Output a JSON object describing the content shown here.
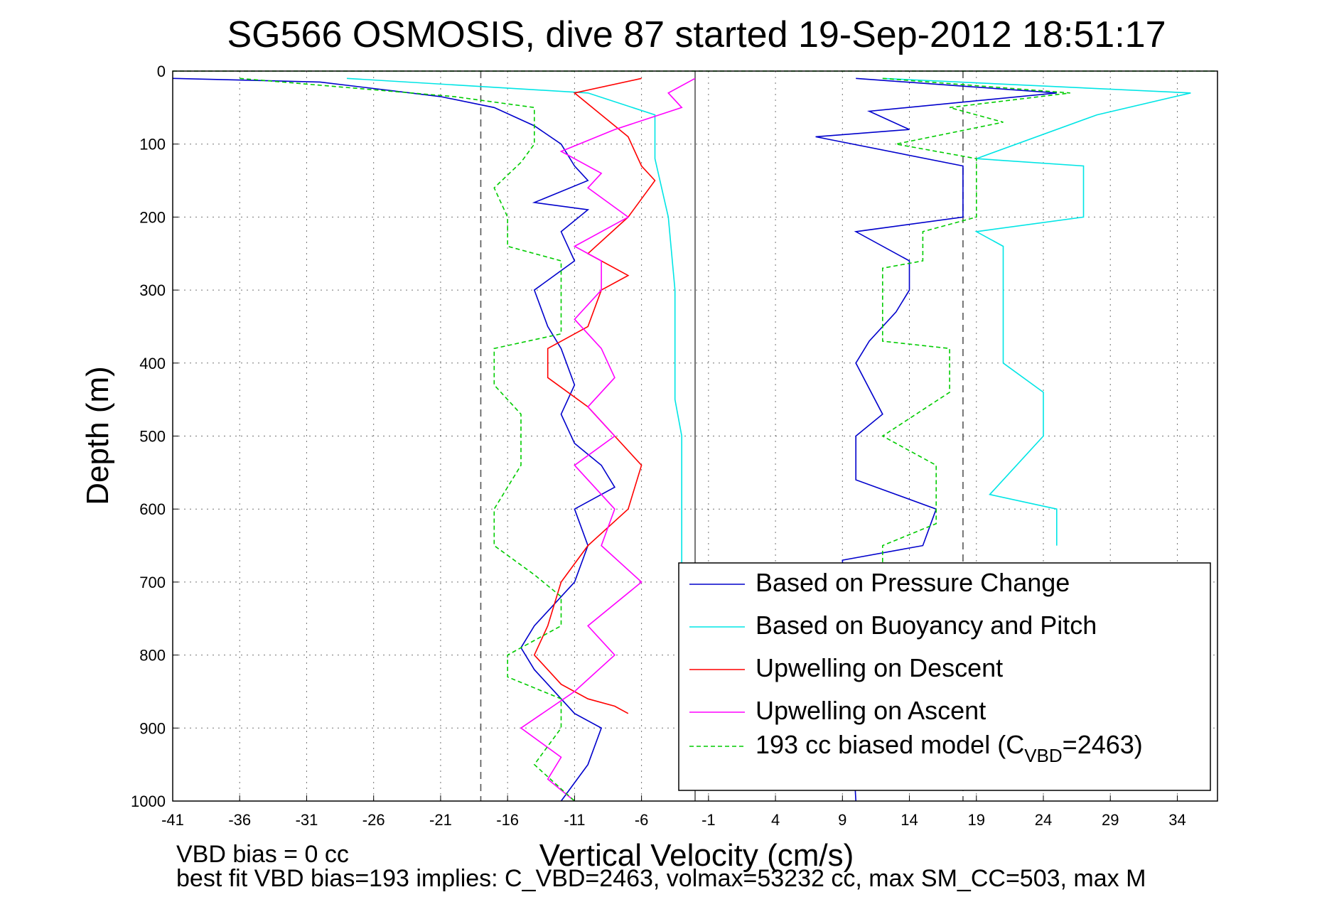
{
  "chart_data": {
    "type": "line",
    "title": "SG566 OSMOSIS, dive 87 started 19-Sep-2012 18:51:17",
    "xlabel": "Vertical Velocity (cm/s)",
    "ylabel": "Depth (m)",
    "xlim": [
      -41,
      37
    ],
    "ylim": [
      0,
      1000
    ],
    "y_reversed": true,
    "grid": true,
    "legend_position": "bottom-right",
    "x_ticks": [
      "-41",
      "-36",
      "-31",
      "-26",
      "-21",
      "-16",
      "-11",
      "-6",
      "-1",
      "4",
      "9",
      "14",
      "19",
      "24",
      "29",
      "34"
    ],
    "y_ticks": [
      "0",
      "100",
      "200",
      "300",
      "400",
      "500",
      "600",
      "700",
      "800",
      "900",
      "1000"
    ],
    "reference_lines": {
      "solid": [
        -2
      ],
      "dashed": [
        -18,
        18
      ]
    },
    "legend": {
      "items": [
        {
          "label": "Based on Pressure Change",
          "color": "#0000cc",
          "dash": "solid"
        },
        {
          "label": "Based on Buoyancy and Pitch",
          "color": "#00e5e5",
          "dash": "solid"
        },
        {
          "label": "Upwelling on Descent",
          "color": "#ff0000",
          "dash": "solid"
        },
        {
          "label": "Upwelling on Ascent",
          "color": "#ff00ff",
          "dash": "solid"
        },
        {
          "label": "193 cc biased model (C",
          "sub": "VBD",
          "suffix": "=2463)",
          "color": "#00cc00",
          "dash": "dashed"
        }
      ]
    },
    "series": [
      {
        "name": "Based on Pressure Change",
        "color": "#0000cc",
        "x": [
          -41,
          -30,
          -21,
          -17,
          -14,
          -12,
          -11,
          -10,
          -14,
          -10,
          -12,
          -11,
          -14,
          -13,
          -12,
          -11,
          -12,
          -11,
          -9,
          -8,
          -11,
          -10,
          -11,
          -14,
          -15,
          -14,
          -13,
          -12,
          -11,
          -9,
          -10,
          -12
        ],
        "y": [
          10,
          15,
          35,
          50,
          75,
          100,
          130,
          150,
          180,
          190,
          220,
          260,
          300,
          350,
          380,
          430,
          470,
          510,
          540,
          570,
          600,
          650,
          700,
          760,
          790,
          820,
          840,
          860,
          880,
          900,
          950,
          1000
        ]
      },
      {
        "name": "Based on Buoyancy and Pitch",
        "color": "#00e5e5",
        "x": [
          -28,
          -10,
          -5,
          -5,
          -4,
          -3.5,
          -3.5,
          -3.5,
          -3,
          -3,
          -3,
          -3,
          -3,
          -3
        ],
        "y": [
          10,
          30,
          60,
          120,
          200,
          300,
          400,
          450,
          500,
          600,
          650,
          670,
          700,
          760
        ]
      },
      {
        "name": "Upwelling on Descent",
        "color": "#ff0000",
        "x": [
          -6,
          -11,
          -9,
          -7,
          -6,
          -5,
          -7,
          -10,
          -7,
          -9,
          -10,
          -13,
          -13,
          -10,
          -8,
          -6,
          -7,
          -10,
          -12,
          -13,
          -14,
          -12,
          -10,
          -8,
          -7
        ],
        "y": [
          10,
          30,
          60,
          90,
          130,
          150,
          200,
          250,
          280,
          300,
          350,
          380,
          420,
          460,
          500,
          540,
          600,
          650,
          700,
          760,
          800,
          840,
          860,
          870,
          880
        ]
      },
      {
        "name": "Upwelling on Ascent",
        "color": "#ff00ff",
        "x": [
          -2,
          -4,
          -3,
          -8,
          -12,
          -9,
          -10,
          -7,
          -11,
          -9,
          -9,
          -11,
          -9,
          -8,
          -10,
          -8,
          -11,
          -8,
          -9,
          -6,
          -10,
          -8,
          -11,
          -15,
          -12,
          -13,
          -11
        ],
        "y": [
          10,
          30,
          50,
          80,
          110,
          140,
          160,
          200,
          240,
          260,
          300,
          340,
          380,
          420,
          460,
          500,
          540,
          600,
          650,
          700,
          760,
          800,
          850,
          900,
          940,
          970,
          1000
        ]
      },
      {
        "name": "193 cc biased model (CVBD=2463)",
        "color": "#00cc00",
        "x": [
          -36,
          -20,
          -14,
          -14,
          -15,
          -17,
          -16,
          -16,
          -12,
          -12,
          -12,
          -17,
          -17,
          -15,
          -15,
          -15,
          -17,
          -17,
          -14,
          -12,
          -12,
          -16,
          -16,
          -12,
          -12,
          -14,
          -11
        ],
        "y": [
          10,
          35,
          50,
          100,
          125,
          160,
          200,
          240,
          260,
          300,
          360,
          380,
          430,
          470,
          500,
          540,
          600,
          650,
          690,
          720,
          760,
          800,
          830,
          860,
          900,
          950,
          1000
        ]
      }
    ],
    "series_right": [
      {
        "name": "Based on Pressure Change",
        "color": "#0000cc",
        "x": [
          10,
          25,
          11,
          14,
          7,
          18,
          18,
          10,
          14,
          14,
          13,
          11,
          10,
          12,
          10,
          10,
          16,
          15,
          9,
          10
        ],
        "y": [
          10,
          30,
          55,
          80,
          90,
          130,
          200,
          220,
          260,
          300,
          330,
          370,
          400,
          470,
          500,
          560,
          600,
          650,
          670,
          1000
        ]
      },
      {
        "name": "Based on Buoyancy and Pitch",
        "color": "#00e5e5",
        "x": [
          12,
          35,
          28,
          19,
          27,
          27,
          19,
          21,
          21,
          24,
          24,
          20,
          25,
          25
        ],
        "y": [
          10,
          30,
          60,
          120,
          130,
          200,
          220,
          240,
          400,
          440,
          500,
          580,
          600,
          650
        ]
      },
      {
        "name": "193 cc biased model (CVBD=2463)",
        "color": "#00cc00",
        "x": [
          12,
          26,
          17,
          21,
          13,
          19,
          19,
          15,
          15,
          12,
          12,
          17,
          17,
          12,
          16,
          16,
          12,
          12
        ],
        "y": [
          10,
          30,
          50,
          70,
          100,
          120,
          200,
          220,
          260,
          270,
          370,
          380,
          440,
          500,
          540,
          620,
          650,
          700
        ]
      }
    ]
  },
  "footer": {
    "line1": "VBD bias = 0 cc",
    "line2": "best fit VBD bias=193 implies: C_VBD=2463, volmax=53232 cc, max SM_CC=503, max M"
  }
}
